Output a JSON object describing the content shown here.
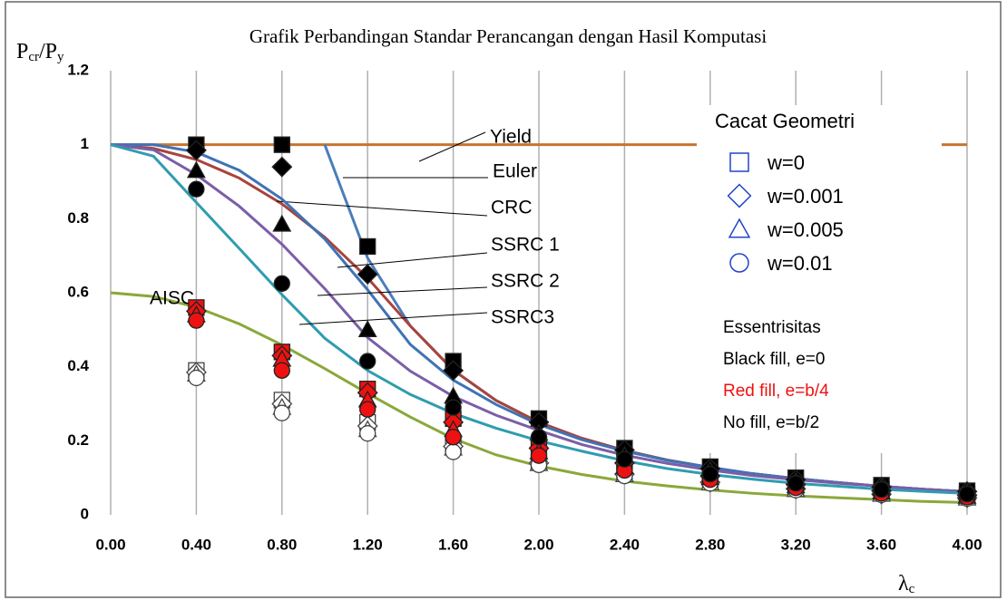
{
  "chart_data": {
    "type": "line",
    "title": "Grafik Perbandingan Standar Perancangan dengan Hasil Komputasi",
    "ylabel": [
      "P",
      "cr",
      "/P",
      "y"
    ],
    "xlabel": [
      "λ",
      "c"
    ],
    "xlim": [
      0,
      4
    ],
    "ylim": [
      0,
      1.2
    ],
    "xticks": [
      {
        "value": 0,
        "label": "0.00"
      },
      {
        "value": 0.4,
        "label": "0.40"
      },
      {
        "value": 0.8,
        "label": "0.80"
      },
      {
        "value": 1.2,
        "label": "1.20"
      },
      {
        "value": 1.6,
        "label": "1.60"
      },
      {
        "value": 2.0,
        "label": "2.00"
      },
      {
        "value": 2.4,
        "label": "2.40"
      },
      {
        "value": 2.8,
        "label": "2.80"
      },
      {
        "value": 3.2,
        "label": "3.20"
      },
      {
        "value": 3.6,
        "label": "3.60"
      },
      {
        "value": 4.0,
        "label": "4.00"
      }
    ],
    "yticks": [
      0,
      0.2,
      0.4,
      0.6,
      0.8,
      1,
      1.2
    ],
    "grid": "x",
    "series": [
      {
        "type": "line",
        "name": "Yield",
        "color": "#c8742e",
        "x": [
          0,
          4
        ],
        "values": [
          1,
          1
        ]
      },
      {
        "type": "line",
        "name": "Euler",
        "color": "#4a7ebb",
        "x": [
          1.0,
          1.2,
          1.4,
          1.6,
          1.8,
          2.0,
          2.2,
          2.4,
          2.6,
          2.8,
          3.0,
          3.2,
          3.4,
          3.6,
          3.8,
          4.0
        ],
        "values": [
          1.0,
          0.694,
          0.51,
          0.391,
          0.309,
          0.25,
          0.207,
          0.174,
          0.148,
          0.128,
          0.111,
          0.098,
          0.087,
          0.077,
          0.069,
          0.0625
        ]
      },
      {
        "type": "line",
        "name": "CRC",
        "color": "#a8443c",
        "x": [
          0,
          0.2,
          0.4,
          0.6,
          0.8,
          1.0,
          1.2,
          1.4,
          1.6,
          1.8,
          2.0,
          2.2,
          2.4,
          2.6,
          2.8,
          3.0,
          3.2,
          3.4,
          3.6,
          3.8,
          4.0
        ],
        "values": [
          1,
          0.99,
          0.96,
          0.91,
          0.84,
          0.75,
          0.64,
          0.51,
          0.391,
          0.309,
          0.25,
          0.207,
          0.174,
          0.148,
          0.128,
          0.111,
          0.098,
          0.087,
          0.077,
          0.069,
          0.0625
        ]
      },
      {
        "type": "line",
        "name": "SSRC 1",
        "color": "#3f73b5",
        "x": [
          0,
          0.2,
          0.4,
          0.6,
          0.8,
          1.0,
          1.2,
          1.4,
          1.6,
          1.8,
          2.0,
          2.2,
          2.4,
          2.6,
          2.8,
          3.0,
          3.2,
          3.4,
          3.6,
          3.8,
          4.0
        ],
        "values": [
          1,
          1.0,
          0.98,
          0.931,
          0.853,
          0.745,
          0.608,
          0.46,
          0.364,
          0.298,
          0.244,
          0.203,
          0.172,
          0.147,
          0.128,
          0.111,
          0.098,
          0.087,
          0.077,
          0.069,
          0.0625
        ]
      },
      {
        "type": "line",
        "name": "SSRC 2",
        "color": "#7b5ea7",
        "x": [
          0,
          0.2,
          0.4,
          0.6,
          0.8,
          1.0,
          1.2,
          1.4,
          1.6,
          1.8,
          2.0,
          2.2,
          2.4,
          2.6,
          2.8,
          3.0,
          3.2,
          3.4,
          3.6,
          3.8,
          4.0
        ],
        "values": [
          1,
          0.986,
          0.919,
          0.834,
          0.731,
          0.611,
          0.479,
          0.388,
          0.32,
          0.269,
          0.228,
          0.19,
          0.161,
          0.139,
          0.121,
          0.106,
          0.095,
          0.085,
          0.077,
          0.069,
          0.0625
        ]
      },
      {
        "type": "line",
        "name": "SSRC3",
        "color": "#2f9cb0",
        "x": [
          0,
          0.2,
          0.4,
          0.6,
          0.8,
          1.0,
          1.2,
          1.4,
          1.6,
          1.8,
          2.0,
          2.2,
          2.4,
          2.6,
          2.8,
          3.0,
          3.2,
          3.4,
          3.6,
          3.8,
          4.0
        ],
        "values": [
          1,
          0.969,
          0.844,
          0.72,
          0.595,
          0.477,
          0.39,
          0.325,
          0.274,
          0.234,
          0.2,
          0.172,
          0.146,
          0.125,
          0.109,
          0.096,
          0.085,
          0.077,
          0.069,
          0.063,
          0.058
        ]
      },
      {
        "type": "line",
        "name": "AISC",
        "color": "#8aa83a",
        "x": [
          0,
          0.2,
          0.4,
          0.6,
          0.8,
          1.0,
          1.2,
          1.4,
          1.6,
          1.8,
          2.0,
          2.2,
          2.4,
          2.6,
          2.8,
          3.0,
          3.2,
          3.4,
          3.6,
          3.8,
          4.0
        ],
        "values": [
          0.6,
          0.59,
          0.561,
          0.516,
          0.459,
          0.395,
          0.328,
          0.264,
          0.206,
          0.162,
          0.132,
          0.109,
          0.091,
          0.078,
          0.067,
          0.058,
          0.051,
          0.046,
          0.041,
          0.036,
          0.033
        ]
      },
      {
        "type": "scatter",
        "marker": "square",
        "fill": "none",
        "x": [
          0.4,
          0.8,
          1.2,
          1.6,
          2.0,
          2.4,
          2.8,
          3.2,
          3.6,
          4.0
        ],
        "values": [
          0.39,
          0.31,
          0.25,
          0.19,
          0.145,
          0.115,
          0.09,
          0.072,
          0.058,
          0.048
        ]
      },
      {
        "type": "scatter",
        "marker": "diamond",
        "fill": "none",
        "x": [
          0.4,
          0.8,
          1.2,
          1.6,
          2.0,
          2.4,
          2.8,
          3.2,
          3.6,
          4.0
        ],
        "values": [
          0.385,
          0.3,
          0.24,
          0.185,
          0.14,
          0.11,
          0.088,
          0.07,
          0.056,
          0.046
        ]
      },
      {
        "type": "scatter",
        "marker": "triangle",
        "fill": "none",
        "x": [
          0.4,
          0.8,
          1.2,
          1.6,
          2.0,
          2.4,
          2.8,
          3.2,
          3.6,
          4.0
        ],
        "values": [
          0.38,
          0.29,
          0.23,
          0.18,
          0.138,
          0.108,
          0.086,
          0.068,
          0.055,
          0.045
        ]
      },
      {
        "type": "scatter",
        "marker": "circle",
        "fill": "none",
        "x": [
          0.4,
          0.8,
          1.2,
          1.6,
          2.0,
          2.4,
          2.8,
          3.2,
          3.6,
          4.0
        ],
        "values": [
          0.37,
          0.275,
          0.22,
          0.17,
          0.135,
          0.105,
          0.085,
          0.067,
          0.054,
          0.044
        ]
      },
      {
        "type": "scatter",
        "marker": "square",
        "fill": "#ee1111",
        "x": [
          0.4,
          0.8,
          1.2,
          1.6,
          2.0,
          2.4,
          2.8,
          3.2,
          3.6,
          4.0
        ],
        "values": [
          0.56,
          0.44,
          0.34,
          0.26,
          0.19,
          0.145,
          0.11,
          0.085,
          0.068,
          0.055
        ]
      },
      {
        "type": "scatter",
        "marker": "diamond",
        "fill": "#ee1111",
        "x": [
          0.4,
          0.8,
          1.2,
          1.6,
          2.0,
          2.4,
          2.8,
          3.2,
          3.6,
          4.0
        ],
        "values": [
          0.55,
          0.43,
          0.33,
          0.25,
          0.18,
          0.14,
          0.105,
          0.082,
          0.065,
          0.053
        ]
      },
      {
        "type": "scatter",
        "marker": "triangle",
        "fill": "#ee1111",
        "x": [
          0.4,
          0.8,
          1.2,
          1.6,
          2.0,
          2.4,
          2.8,
          3.2,
          3.6,
          4.0
        ],
        "values": [
          0.54,
          0.42,
          0.31,
          0.23,
          0.17,
          0.13,
          0.1,
          0.078,
          0.062,
          0.05
        ]
      },
      {
        "type": "scatter",
        "marker": "circle",
        "fill": "#ee1111",
        "x": [
          0.4,
          0.8,
          1.2,
          1.6,
          2.0,
          2.4,
          2.8,
          3.2,
          3.6,
          4.0
        ],
        "values": [
          0.525,
          0.39,
          0.285,
          0.21,
          0.16,
          0.12,
          0.095,
          0.073,
          0.058,
          0.048
        ]
      },
      {
        "type": "scatter",
        "marker": "square",
        "fill": "#000000",
        "x": [
          0.4,
          0.8,
          1.2,
          1.6,
          2.0,
          2.4,
          2.8,
          3.2,
          3.6,
          4.0
        ],
        "values": [
          1.0,
          1.0,
          0.725,
          0.415,
          0.26,
          0.18,
          0.13,
          0.1,
          0.08,
          0.065
        ]
      },
      {
        "type": "scatter",
        "marker": "diamond",
        "fill": "#000000",
        "x": [
          0.4,
          0.8,
          1.2,
          1.6,
          2.0,
          2.4,
          2.8,
          3.2,
          3.6,
          4.0
        ],
        "values": [
          0.985,
          0.94,
          0.65,
          0.39,
          0.25,
          0.175,
          0.125,
          0.095,
          0.075,
          0.063
        ]
      },
      {
        "type": "scatter",
        "marker": "triangle",
        "fill": "#000000",
        "x": [
          0.4,
          0.8,
          1.2,
          1.6,
          2.0,
          2.4,
          2.8,
          3.2,
          3.6,
          4.0
        ],
        "values": [
          0.93,
          0.785,
          0.5,
          0.32,
          0.22,
          0.16,
          0.12,
          0.09,
          0.072,
          0.06
        ]
      },
      {
        "type": "scatter",
        "marker": "circle",
        "fill": "#000000",
        "x": [
          0.4,
          0.8,
          1.2,
          1.6,
          2.0,
          2.4,
          2.8,
          3.2,
          3.6,
          4.0
        ],
        "values": [
          0.88,
          0.625,
          0.415,
          0.29,
          0.21,
          0.15,
          0.11,
          0.085,
          0.068,
          0.056
        ]
      }
    ],
    "legend": {
      "title": "Cacat Geometri",
      "color": "#2244cc",
      "entries": [
        {
          "label": "w=0",
          "marker": "square"
        },
        {
          "label": "w=0.001",
          "marker": "diamond"
        },
        {
          "label": "w=0.005",
          "marker": "triangle"
        },
        {
          "label": "w=0.01",
          "marker": "circle"
        }
      ],
      "note_title": "Essentrisitas",
      "notes": [
        {
          "text": "Black fill, e=0",
          "color": "#000000"
        },
        {
          "text": "Red fill, e=b/4",
          "color": "#ee1111"
        },
        {
          "text": "No fill, e=b/2",
          "color": "#000000"
        }
      ]
    }
  }
}
